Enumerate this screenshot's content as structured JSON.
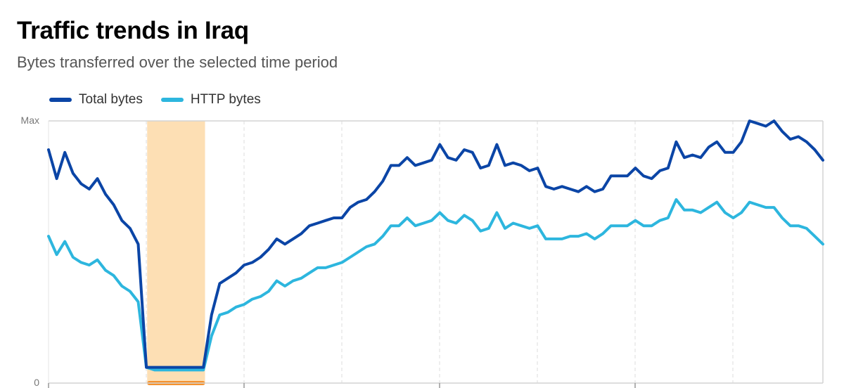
{
  "header": {
    "title": "Traffic trends in Iraq",
    "subtitle": "Bytes transferred over the selected time period"
  },
  "chart_data": {
    "type": "line",
    "title": "Traffic trends in Iraq",
    "subtitle": "Bytes transferred over the selected time period",
    "y_tick_labels": [
      "Max",
      "0"
    ],
    "ylim": [
      0,
      1
    ],
    "ylabel": "",
    "xlabel": "",
    "legend_placement": "top-left",
    "highlight_range_index": [
      12.1,
      19.2
    ],
    "series": [
      {
        "name": "Total bytes",
        "color": "#0b45a6",
        "values": [
          0.89,
          0.78,
          0.88,
          0.8,
          0.76,
          0.74,
          0.78,
          0.72,
          0.68,
          0.62,
          0.59,
          0.53,
          0.06,
          0.06,
          0.06,
          0.06,
          0.06,
          0.06,
          0.06,
          0.06,
          0.26,
          0.38,
          0.4,
          0.42,
          0.45,
          0.46,
          0.48,
          0.51,
          0.55,
          0.53,
          0.55,
          0.57,
          0.6,
          0.61,
          0.62,
          0.63,
          0.63,
          0.67,
          0.69,
          0.7,
          0.73,
          0.77,
          0.83,
          0.83,
          0.86,
          0.83,
          0.84,
          0.85,
          0.91,
          0.86,
          0.85,
          0.89,
          0.88,
          0.82,
          0.83,
          0.91,
          0.83,
          0.84,
          0.83,
          0.81,
          0.82,
          0.75,
          0.74,
          0.75,
          0.74,
          0.73,
          0.75,
          0.73,
          0.74,
          0.79,
          0.79,
          0.79,
          0.82,
          0.79,
          0.78,
          0.81,
          0.82,
          0.92,
          0.86,
          0.87,
          0.86,
          0.9,
          0.92,
          0.88,
          0.88,
          0.92,
          1.0,
          0.99,
          0.98,
          1.0,
          0.96,
          0.93,
          0.94,
          0.92,
          0.89,
          0.85
        ]
      },
      {
        "name": "HTTP bytes",
        "color": "#2db6de",
        "values": [
          0.56,
          0.49,
          0.54,
          0.48,
          0.46,
          0.45,
          0.47,
          0.43,
          0.41,
          0.37,
          0.35,
          0.31,
          0.06,
          0.05,
          0.05,
          0.05,
          0.05,
          0.05,
          0.05,
          0.05,
          0.18,
          0.26,
          0.27,
          0.29,
          0.3,
          0.32,
          0.33,
          0.35,
          0.39,
          0.37,
          0.39,
          0.4,
          0.42,
          0.44,
          0.44,
          0.45,
          0.46,
          0.48,
          0.5,
          0.52,
          0.53,
          0.56,
          0.6,
          0.6,
          0.63,
          0.6,
          0.61,
          0.62,
          0.65,
          0.62,
          0.61,
          0.64,
          0.62,
          0.58,
          0.59,
          0.65,
          0.59,
          0.61,
          0.6,
          0.59,
          0.6,
          0.55,
          0.55,
          0.55,
          0.56,
          0.56,
          0.57,
          0.55,
          0.57,
          0.6,
          0.6,
          0.6,
          0.62,
          0.6,
          0.6,
          0.62,
          0.63,
          0.7,
          0.66,
          0.66,
          0.65,
          0.67,
          0.69,
          0.65,
          0.63,
          0.65,
          0.69,
          0.68,
          0.67,
          0.67,
          0.63,
          0.6,
          0.6,
          0.59,
          0.56,
          0.53
        ]
      }
    ]
  }
}
